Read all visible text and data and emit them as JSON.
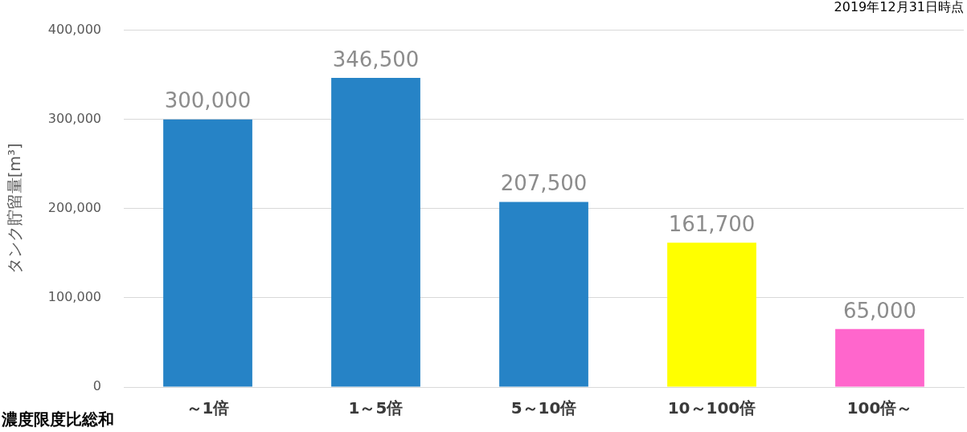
{
  "chart_data": {
    "type": "bar",
    "categories": [
      "～1倍",
      "1～5倍",
      "5～10倍",
      "10～100倍",
      "100倍～"
    ],
    "values": [
      300000,
      346500,
      207500,
      161700,
      65000
    ],
    "value_labels": [
      "300,000",
      "346,500",
      "207,500",
      "161,700",
      "65,000"
    ],
    "colors": [
      "#2683c6",
      "#2683c6",
      "#2683c6",
      "#ffff00",
      "#ff66cc"
    ],
    "ylabel": "タンク貯留量[m³]",
    "xlabel": "濃度限度比総和",
    "annotations": [
      "2019年12月31日時点"
    ],
    "ylim": [
      0,
      400000
    ],
    "yticks": [
      0,
      {
        "value": 100000,
        "label": "100,000"
      },
      {
        "value": 200000,
        "label": "200,000"
      },
      {
        "value": 300000,
        "label": "300,000"
      },
      {
        "value": 400000,
        "label": "400,000"
      }
    ],
    "grid": "y",
    "legend": false
  }
}
